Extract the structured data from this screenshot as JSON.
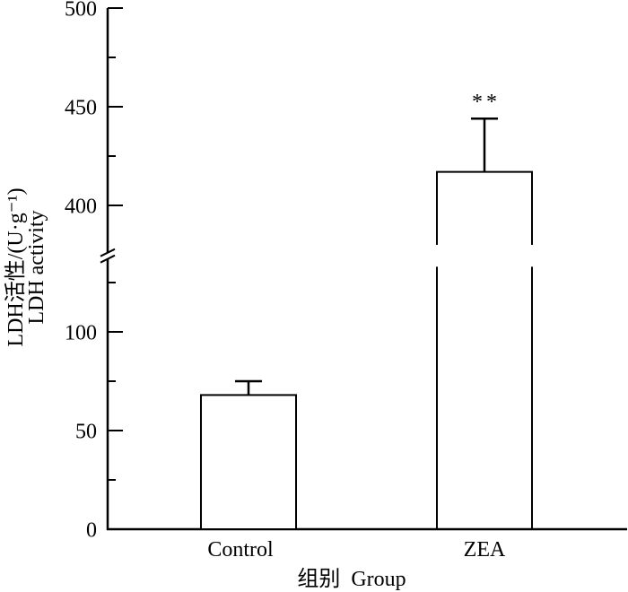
{
  "chart_data": {
    "type": "bar",
    "categories": [
      "Control",
      "ZEA"
    ],
    "values": [
      68,
      417
    ],
    "errors": [
      7,
      27
    ],
    "annotations": [
      {
        "category": "ZEA",
        "text": "**"
      }
    ],
    "xlabel": "组别  Group",
    "ylabel": [
      "LDH活性/(U·g⁻¹)",
      "LDH activity"
    ],
    "ylim": [
      0,
      500
    ],
    "y_break": [
      133,
      380
    ],
    "yticks": [
      0,
      50,
      100,
      400,
      450,
      500
    ],
    "minor_tick_step": 25,
    "grid": false,
    "colors": {
      "bar_fill": "#ffffff",
      "line": "#000000"
    }
  }
}
